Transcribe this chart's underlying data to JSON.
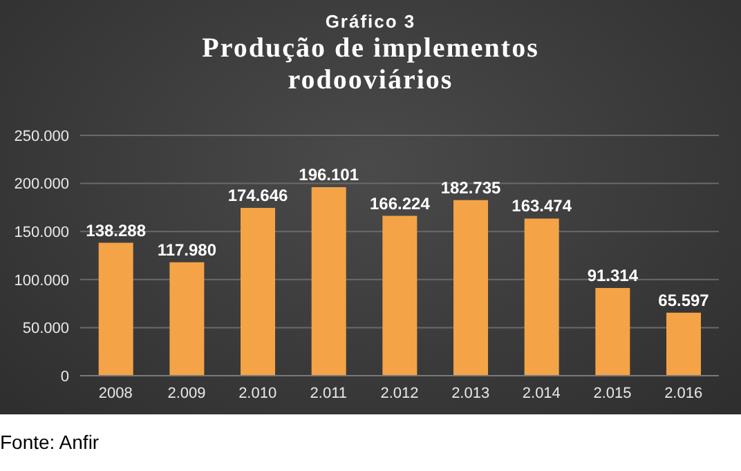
{
  "chart_data": {
    "type": "bar",
    "subtitle": "Gráfico 3",
    "title": "Produção de implementos rodooviários",
    "categories": [
      "2008",
      "2.009",
      "2.010",
      "2.011",
      "2.012",
      "2.013",
      "2.014",
      "2.015",
      "2.016"
    ],
    "values": [
      138288,
      117980,
      174646,
      196101,
      166224,
      182735,
      163474,
      91314,
      65597
    ],
    "value_labels": [
      "138.288",
      "117.980",
      "174.646",
      "196.101",
      "166.224",
      "182.735",
      "163.474",
      "91.314",
      "65.597"
    ],
    "color": "#f4a347",
    "ylim": [
      0,
      250000
    ],
    "yticks": [
      {
        "value": 0,
        "label": "0"
      },
      {
        "value": 50000,
        "label": "50.000"
      },
      {
        "value": 100000,
        "label": "100.000"
      },
      {
        "value": 150000,
        "label": "150.000"
      },
      {
        "value": 200000,
        "label": "200.000"
      },
      {
        "value": 250000,
        "label": "250.000"
      }
    ],
    "grid": "y",
    "legend": false,
    "annotations": [
      "Fonte: Anfir"
    ]
  }
}
